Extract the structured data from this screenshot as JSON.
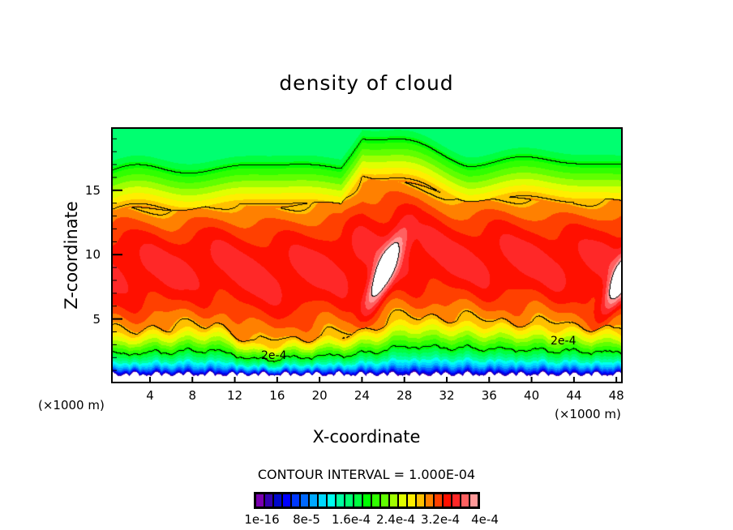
{
  "chart_data": {
    "type": "heatmap",
    "subtype": "filled-contour",
    "title": "density of cloud",
    "xlabel": "X-coordinate",
    "ylabel": "Z-coordinate",
    "x_unit": "(×1000 m)",
    "y_unit": "(×1000 m)",
    "xlim": [
      0.33,
      48.6
    ],
    "ylim": [
      0,
      19.9
    ],
    "xticks": [
      4,
      8,
      12,
      16,
      20,
      24,
      28,
      32,
      36,
      40,
      44,
      48
    ],
    "yticks": [
      5,
      10,
      15
    ],
    "contour_interval_label": "CONTOUR INTERVAL = 1.000E-04",
    "contour_labels": [
      {
        "text": "2e-4",
        "x": 15.8,
        "z": 1.9
      },
      {
        "text": "2e-4",
        "x": 45.4,
        "z": 3.2
      }
    ],
    "colorbar": {
      "labels": [
        "1e-16",
        "8e-5",
        "1.6e-4",
        "2.4e-4",
        "3.2e-4",
        "4e-4"
      ],
      "colors": [
        "#7a00b0",
        "#3400b0",
        "#0008cc",
        "#0000ff",
        "#0038ff",
        "#0068ff",
        "#00a8ff",
        "#00d8ff",
        "#00fff0",
        "#00ffa0",
        "#00ff70",
        "#00ff40",
        "#00ff00",
        "#30ff00",
        "#60ff00",
        "#a0ff00",
        "#e0ff00",
        "#ffee00",
        "#ffc000",
        "#ff8000",
        "#ff4000",
        "#ff1000",
        "#ff2828",
        "#ff6060",
        "#ff9898"
      ],
      "step": 1.6e-05
    },
    "features": {
      "upper_3e-4_contour_height": {
        "x": [
          0,
          12,
          22,
          24,
          34,
          48.6
        ],
        "z": [
          13.4,
          13.8,
          13.9,
          16.3,
          14.3,
          14.1
        ]
      },
      "lower_3e-4_contour_height": {
        "x": [
          0,
          10,
          14,
          24,
          28,
          48.6
        ],
        "z": [
          3.9,
          4.6,
          3.0,
          4.0,
          5.2,
          4.2
        ]
      },
      "max_regions_above_4e-4": [
        {
          "x": 26,
          "z": 8.5
        },
        {
          "x": 48.3,
          "z": 8
        }
      ]
    }
  }
}
